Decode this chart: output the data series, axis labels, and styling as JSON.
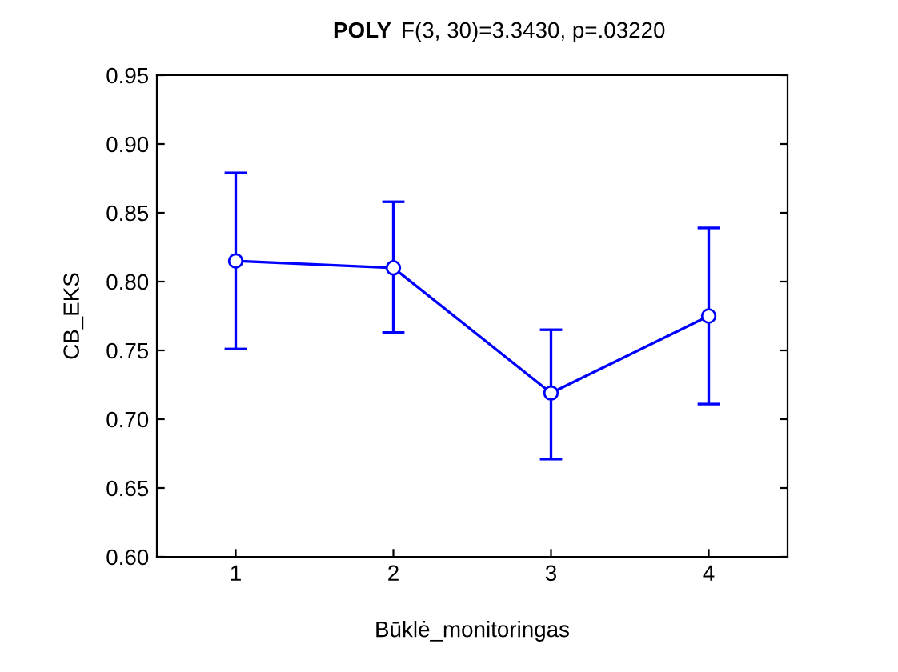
{
  "chart_data": {
    "type": "line",
    "title": "POLY",
    "subtitle": "F(3, 30)=3.3430, p=.03220",
    "xlabel": "Būklė_monitoringas",
    "ylabel": "CB_EKS",
    "categories": [
      "1",
      "2",
      "3",
      "4"
    ],
    "series": [
      {
        "color": "#0000ff",
        "values": [
          0.815,
          0.81,
          0.719,
          0.775
        ],
        "errors": [
          [
            0.751,
            0.879
          ],
          [
            0.763,
            0.858
          ],
          [
            0.671,
            0.765
          ],
          [
            0.711,
            0.839
          ]
        ]
      }
    ],
    "ylim": [
      0.6,
      0.95
    ],
    "yticks": [
      {
        "value": 0.6,
        "label": "0.60"
      },
      {
        "value": 0.65,
        "label": "0.65"
      },
      {
        "value": 0.7,
        "label": "0.70"
      },
      {
        "value": 0.75,
        "label": "0.75"
      },
      {
        "value": 0.8,
        "label": "0.80"
      },
      {
        "value": 0.85,
        "label": "0.85"
      },
      {
        "value": 0.9,
        "label": "0.90"
      },
      {
        "value": 0.95,
        "label": "0.95"
      }
    ],
    "grid": false,
    "legend": false,
    "marker": "circle",
    "line_style": "solid"
  }
}
